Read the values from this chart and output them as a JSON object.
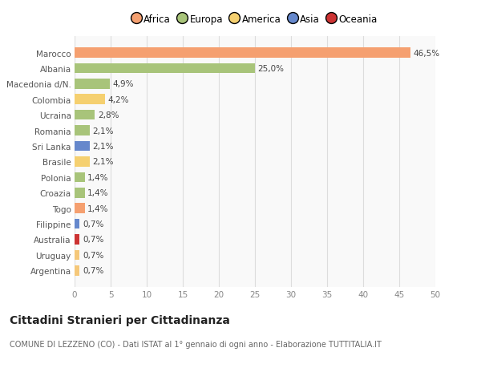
{
  "categories": [
    "Argentina",
    "Uruguay",
    "Australia",
    "Filippine",
    "Togo",
    "Croazia",
    "Polonia",
    "Brasile",
    "Sri Lanka",
    "Romania",
    "Ucraina",
    "Colombia",
    "Macedonia d/N.",
    "Albania",
    "Marocco"
  ],
  "values": [
    0.7,
    0.7,
    0.7,
    0.7,
    1.4,
    1.4,
    1.4,
    2.1,
    2.1,
    2.1,
    2.8,
    4.2,
    4.9,
    25.0,
    46.5
  ],
  "labels": [
    "0,7%",
    "0,7%",
    "0,7%",
    "0,7%",
    "1,4%",
    "1,4%",
    "1,4%",
    "2,1%",
    "2,1%",
    "2,1%",
    "2,8%",
    "4,2%",
    "4,9%",
    "25,0%",
    "46,5%"
  ],
  "colors": [
    "#f5c87a",
    "#f5c87a",
    "#cc3333",
    "#6688cc",
    "#f5a070",
    "#a8c47a",
    "#a8c47a",
    "#f5d070",
    "#6688cc",
    "#a8c47a",
    "#a8c47a",
    "#f5d070",
    "#a8c47a",
    "#a8c47a",
    "#f5a070"
  ],
  "continent_colors": {
    "Africa": "#f5a070",
    "Europa": "#a8c47a",
    "America": "#f5d070",
    "Asia": "#6688cc",
    "Oceania": "#cc3333"
  },
  "title": "Cittadini Stranieri per Cittadinanza",
  "subtitle": "COMUNE DI LEZZENO (CO) - Dati ISTAT al 1° gennaio di ogni anno - Elaborazione TUTTITALIA.IT",
  "xlim": [
    0,
    50
  ],
  "xticks": [
    0,
    5,
    10,
    15,
    20,
    25,
    30,
    35,
    40,
    45,
    50
  ],
  "background_color": "#ffffff",
  "plot_background": "#f9f9f9"
}
